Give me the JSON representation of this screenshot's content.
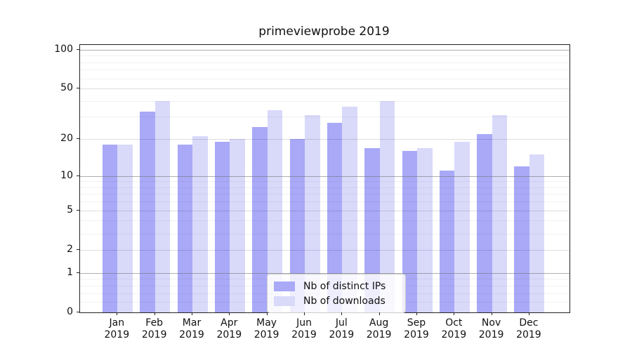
{
  "chart_data": {
    "type": "bar",
    "title": "primeviewprobe 2019",
    "categories": [
      "Jan",
      "Feb",
      "Mar",
      "Apr",
      "May",
      "Jun",
      "Jul",
      "Aug",
      "Sep",
      "Oct",
      "Nov",
      "Dec"
    ],
    "category_year": "2019",
    "series": [
      {
        "name": "Nb of distinct IPs",
        "color": "#a9a9f8",
        "values": [
          18,
          33,
          18,
          19,
          25,
          20,
          27,
          17,
          16,
          11,
          22,
          12
        ]
      },
      {
        "name": "Nb of downloads",
        "color": "#d9d9fa",
        "values": [
          18,
          40,
          21,
          20,
          34,
          31,
          36,
          40,
          17,
          19,
          31,
          15
        ]
      }
    ],
    "xlabel": "",
    "ylabel": "",
    "y_scale": "log1p",
    "ylim": [
      0,
      109
    ],
    "y_ticks_labeled": [
      0,
      1,
      2,
      5,
      10,
      20,
      50,
      100
    ],
    "y_ticks_emphasized": [
      1,
      10,
      100
    ],
    "y_ticks_minor": [
      0.2,
      0.4,
      0.6,
      0.8,
      3,
      4,
      6,
      7,
      8,
      9,
      30,
      40,
      60,
      70,
      80,
      90
    ],
    "grid": true,
    "grid_over_bars": true,
    "legend_position": "lower center"
  }
}
